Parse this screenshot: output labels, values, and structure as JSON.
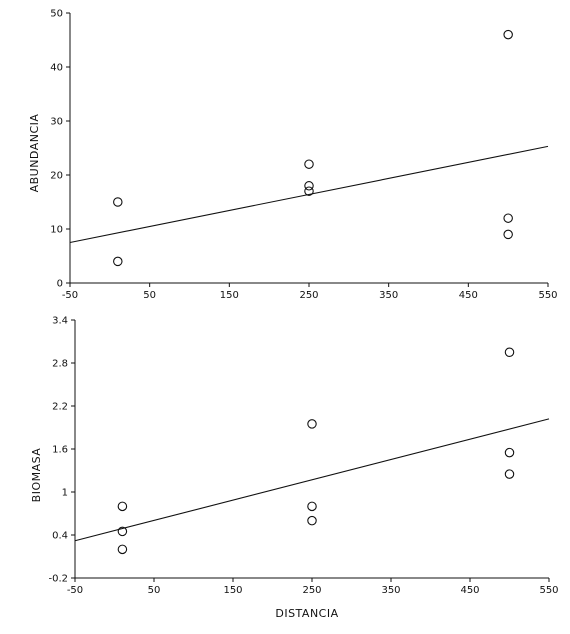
{
  "chart_data": [
    {
      "type": "scatter",
      "title": "",
      "xlabel": "",
      "ylabel": "ABUNDANCIA",
      "xlim": [
        -50,
        550
      ],
      "ylim": [
        0,
        50
      ],
      "xticks": [
        -50,
        50,
        150,
        250,
        350,
        450,
        550
      ],
      "xtick_labels": [
        "-50",
        "50",
        "150",
        "250",
        "350",
        "450",
        "550"
      ],
      "yticks": [
        0,
        10,
        20,
        30,
        40,
        50
      ],
      "ytick_labels": [
        "0",
        "10",
        "20",
        "30",
        "40",
        "50"
      ],
      "grid": false,
      "points": [
        {
          "x": 10,
          "y": 15
        },
        {
          "x": 10,
          "y": 4
        },
        {
          "x": 250,
          "y": 22
        },
        {
          "x": 250,
          "y": 18
        },
        {
          "x": 250,
          "y": 17
        },
        {
          "x": 500,
          "y": 46
        },
        {
          "x": 500,
          "y": 12
        },
        {
          "x": 500,
          "y": 9
        }
      ],
      "fit_line": {
        "x": [
          -50,
          550
        ],
        "y": [
          7.5,
          25.3
        ]
      }
    },
    {
      "type": "scatter",
      "title": "",
      "xlabel": "DISTANCIA",
      "ylabel": "BIOMASA",
      "xlim": [
        -50,
        550
      ],
      "ylim": [
        -0.2,
        3.4
      ],
      "xticks": [
        -50,
        50,
        150,
        250,
        350,
        450,
        550
      ],
      "xtick_labels": [
        "-50",
        "50",
        "150",
        "250",
        "350",
        "450",
        "550"
      ],
      "yticks": [
        -0.2,
        0.4,
        1,
        1.6,
        2.2,
        2.8,
        3.4
      ],
      "ytick_labels": [
        "-0.2",
        "0.4",
        "1",
        "1.6",
        "2.2",
        "2.8",
        "3.4"
      ],
      "grid": false,
      "points": [
        {
          "x": 10,
          "y": 0.8
        },
        {
          "x": 10,
          "y": 0.45
        },
        {
          "x": 10,
          "y": 0.2
        },
        {
          "x": 250,
          "y": 1.95
        },
        {
          "x": 250,
          "y": 0.8
        },
        {
          "x": 250,
          "y": 0.6
        },
        {
          "x": 500,
          "y": 2.95
        },
        {
          "x": 500,
          "y": 1.55
        },
        {
          "x": 500,
          "y": 1.25
        }
      ],
      "fit_line": {
        "x": [
          -50,
          550
        ],
        "y": [
          0.32,
          2.02
        ]
      }
    }
  ]
}
